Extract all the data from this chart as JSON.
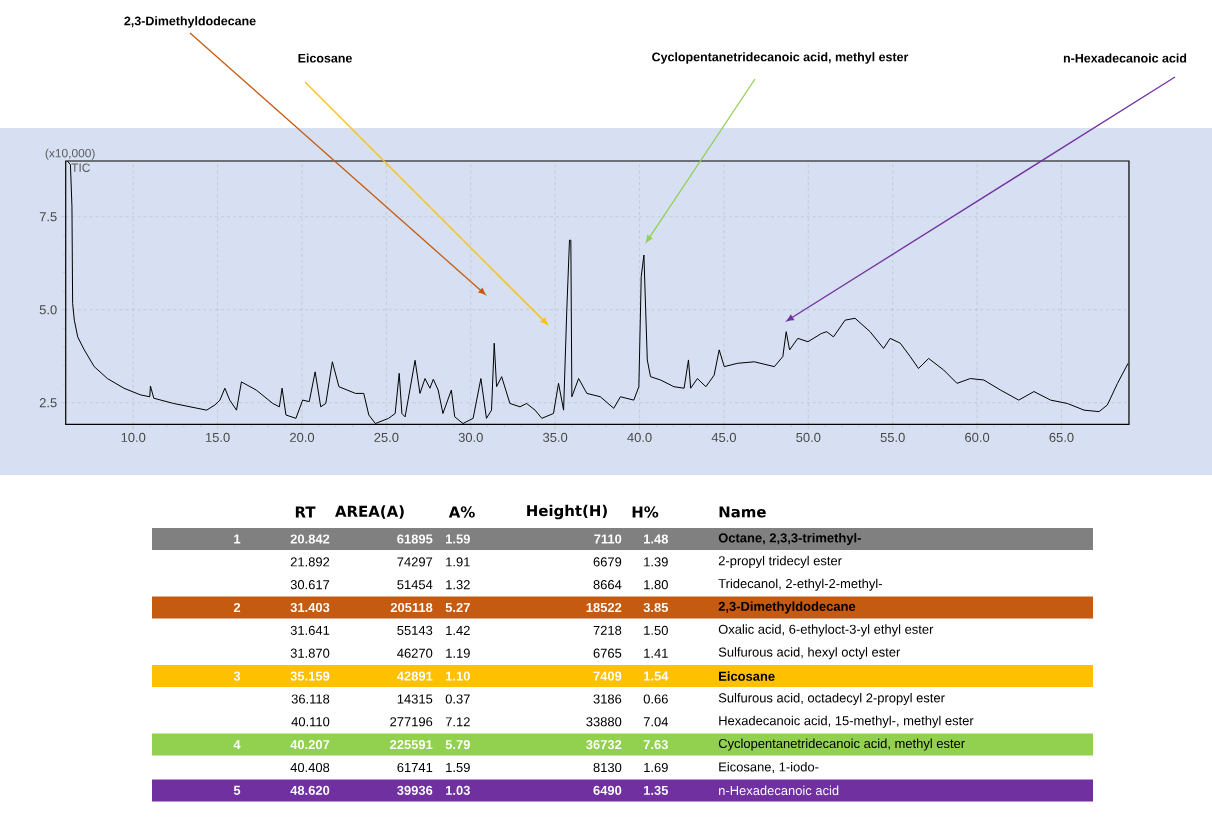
{
  "chart_data": {
    "type": "line",
    "ylabel": "(x10,000)",
    "x": [
      6.1,
      6.28,
      6.37,
      6.41,
      6.51,
      6.71,
      7.1,
      7.69,
      8.47,
      9.45,
      10.43,
      10.98,
      11.02,
      11.22,
      12.39,
      13.37,
      14.35,
      14.84,
      15.14,
      15.43,
      15.72,
      16.12,
      16.41,
      17.29,
      18.27,
      18.66,
      18.82,
      19.05,
      19.64,
      20.04,
      20.43,
      20.78,
      21.11,
      21.41,
      21.8,
      22.19,
      23.17,
      23.66,
      23.96,
      24.35,
      25.13,
      25.52,
      25.76,
      25.92,
      26.11,
      26.7,
      26.99,
      27.29,
      27.58,
      27.78,
      28.07,
      28.35,
      28.85,
      29.05,
      29.54,
      30.14,
      30.6,
      30.93,
      31.23,
      31.39,
      31.53,
      31.83,
      32.32,
      32.92,
      33.31,
      33.81,
      34.21,
      34.9,
      35.2,
      35.5,
      35.69,
      35.85,
      35.93,
      35.99,
      36.39,
      36.88,
      37.68,
      38.47,
      38.87,
      39.66,
      39.96,
      40.1,
      40.26,
      40.46,
      40.65,
      41.25,
      42.04,
      42.64,
      42.9,
      43.03,
      43.43,
      43.93,
      44.42,
      44.72,
      45.02,
      45.81,
      46.8,
      47.99,
      48.49,
      48.69,
      48.89,
      49.38,
      49.98,
      50.77,
      51.09,
      51.49,
      52.18,
      52.77,
      53.66,
      54.46,
      54.85,
      55.45,
      56.04,
      56.53,
      57.13,
      58.02,
      58.81,
      59.6,
      60.4,
      61.39,
      62.47,
      63.37,
      64.36,
      65.35,
      66.34,
      67.23,
      67.72,
      68.32,
      68.95
    ],
    "series": [
      {
        "name": "TIC",
        "color": "#000000",
        "values": [
          9.0,
          8.9,
          7.77,
          5.17,
          4.72,
          4.27,
          3.92,
          3.47,
          3.15,
          2.89,
          2.71,
          2.66,
          2.95,
          2.62,
          2.48,
          2.39,
          2.3,
          2.44,
          2.57,
          2.89,
          2.57,
          2.3,
          3.06,
          2.84,
          2.48,
          2.39,
          2.89,
          2.17,
          2.08,
          2.57,
          2.53,
          3.33,
          2.39,
          2.48,
          3.6,
          2.93,
          2.75,
          2.75,
          2.17,
          1.94,
          2.08,
          2.21,
          3.29,
          2.21,
          2.12,
          3.64,
          2.75,
          3.15,
          2.89,
          3.13,
          2.84,
          2.21,
          2.84,
          2.12,
          1.94,
          2.08,
          3.15,
          2.08,
          2.3,
          4.1,
          2.93,
          3.2,
          2.48,
          2.39,
          2.48,
          2.3,
          2.08,
          2.21,
          3.02,
          2.3,
          4.99,
          6.87,
          6.87,
          2.66,
          3.15,
          2.75,
          2.66,
          2.35,
          2.66,
          2.57,
          2.93,
          5.89,
          6.47,
          3.65,
          3.2,
          3.11,
          2.93,
          2.89,
          3.65,
          2.89,
          3.15,
          2.93,
          3.24,
          3.92,
          3.47,
          3.56,
          3.6,
          3.47,
          3.74,
          4.41,
          3.92,
          4.23,
          4.14,
          4.36,
          4.41,
          4.27,
          4.72,
          4.77,
          4.41,
          3.96,
          4.23,
          4.1,
          3.74,
          3.42,
          3.69,
          3.38,
          3.02,
          3.15,
          3.11,
          2.84,
          2.57,
          2.8,
          2.57,
          2.48,
          2.3,
          2.26,
          2.44,
          3.02,
          3.56
        ]
      }
    ],
    "xlim": [
      6.0,
      69.0
    ],
    "ylim": [
      1.92,
      9.0
    ],
    "xticks": [
      {
        "value": 10,
        "label": "10.0"
      },
      {
        "value": 15,
        "label": "15.0"
      },
      {
        "value": 20,
        "label": "20.0"
      },
      {
        "value": 25,
        "label": "25.0"
      },
      {
        "value": 30,
        "label": "30.0"
      },
      {
        "value": 35,
        "label": "35.0"
      },
      {
        "value": 40,
        "label": "40.0"
      },
      {
        "value": 45,
        "label": "45.0"
      },
      {
        "value": 50,
        "label": "50.0"
      },
      {
        "value": 55,
        "label": "55.0"
      },
      {
        "value": 60,
        "label": "60.0"
      },
      {
        "value": 65,
        "label": "65.0"
      }
    ],
    "yticks": [
      {
        "value": 2.5,
        "label": "2.5"
      },
      {
        "value": 5,
        "label": "5.0"
      },
      {
        "value": 7.5,
        "label": "7.5"
      }
    ],
    "grid": true,
    "marker": "none",
    "annotations": [
      "2,3-Dimethyldodecane",
      "Eicosane",
      "Cyclopentanetridecanoic acid, methyl ester",
      "n-Hexadecanoic acid",
      "RT",
      "AREA(A)",
      "A%",
      "Height(H)",
      "H%",
      "Name",
      "1",
      "20.842",
      "61895",
      "1.59",
      "7110",
      "1.48",
      "Octane, 2,3,3-trimethyl-",
      "21.892",
      "74297",
      "1.91",
      "6679",
      "1.39",
      "2-propyl tridecyl ester",
      "30.617",
      "51454",
      "1.32",
      "8664",
      "1.80",
      "Tridecanol, 2-ethyl-2-methyl-",
      "2",
      "31.403",
      "205118",
      "5.27",
      "18522",
      "3.85",
      "2,3-Dimethyldodecane",
      "31.641",
      "55143",
      "1.42",
      "7218",
      "1.50",
      "Oxalic acid, 6-ethyloct-3-yl ethyl ester",
      "31.870",
      "46270",
      "1.19",
      "6765",
      "1.41",
      "Sulfurous acid, hexyl octyl ester",
      "3",
      "35.159",
      "42891",
      "1.10",
      "7409",
      "1.54",
      "Eicosane",
      "36.118",
      "14315",
      "0.37",
      "3186",
      "0.66",
      "Sulfurous acid, octadecyl 2-propyl ester",
      "40.110",
      "277196",
      "7.12",
      "33880",
      "7.04",
      "Hexadecanoic acid, 15-methyl-, methyl ester",
      "4",
      "40.207",
      "225591",
      "5.79",
      "36732",
      "7.63",
      "Cyclopentanetridecanoic acid, methyl ester",
      "40.408",
      "61741",
      "1.59",
      "8130",
      "1.69",
      "Eicosane, 1-iodo-",
      "5",
      "48.620",
      "39936",
      "1.03",
      "6490",
      "1.35",
      "n-Hexadecanoic acid"
    ]
  }
}
